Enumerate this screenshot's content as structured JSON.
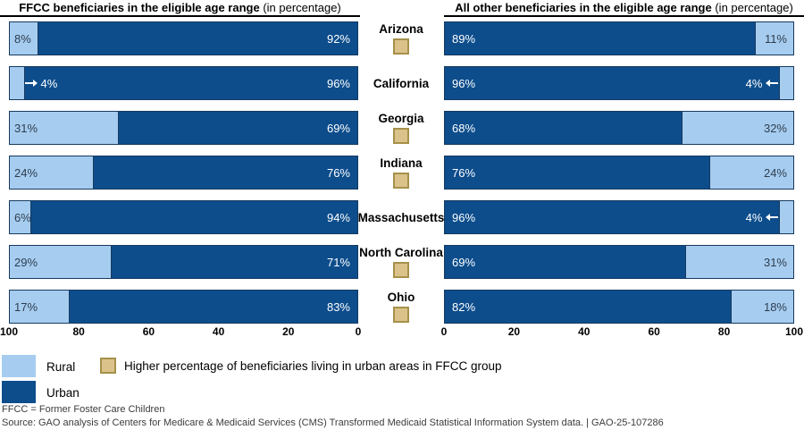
{
  "chart_data": {
    "type": "bar",
    "subtype": "horizontal-mirrored-stacked",
    "categories": [
      "Arizona",
      "California",
      "Georgia",
      "Indiana",
      "Massachusetts",
      "North Carolina",
      "Ohio"
    ],
    "ffcc_higher_urban_marker": [
      true,
      false,
      true,
      true,
      false,
      true,
      true
    ],
    "callout_threshold": 5,
    "panels": [
      {
        "title": "FFCC beneficiaries in the eligible age range",
        "note": " (in percentage)",
        "direction": "right-to-left",
        "axis_ticks": [
          "100",
          "80",
          "60",
          "40",
          "20",
          "0"
        ],
        "axis_range": [
          0,
          100
        ],
        "series": [
          {
            "name": "Rural",
            "values": [
              8,
              4,
              31,
              24,
              6,
              29,
              17
            ]
          },
          {
            "name": "Urban",
            "values": [
              92,
              96,
              69,
              76,
              94,
              71,
              83
            ]
          }
        ]
      },
      {
        "title": "All other beneficiaries in the eligible age range",
        "note": " (in percentage)",
        "direction": "left-to-right",
        "axis_ticks": [
          "0",
          "20",
          "40",
          "60",
          "80",
          "100"
        ],
        "axis_range": [
          0,
          100
        ],
        "series": [
          {
            "name": "Urban",
            "values": [
              89,
              96,
              68,
              76,
              96,
              69,
              82
            ]
          },
          {
            "name": "Rural",
            "values": [
              11,
              4,
              32,
              24,
              4,
              31,
              18
            ]
          }
        ]
      }
    ]
  },
  "legend": {
    "rural_label": "Rural",
    "urban_label": "Urban",
    "marker_label": "Higher percentage of beneficiaries living in urban areas in FFCC group"
  },
  "colors": {
    "rural": "#a6cdf0",
    "urban": "#0d4d8c",
    "bar_border": "#163a5f",
    "marker_fill": "#dbc28a",
    "marker_border": "#a5914a"
  },
  "footer": {
    "line1": "FFCC = Former Foster Care Children",
    "line2": "Source: GAO analysis of Centers for Medicare & Medicaid Services (CMS) Transformed Medicaid Statistical Information System data.  |  GAO-25-107286"
  }
}
